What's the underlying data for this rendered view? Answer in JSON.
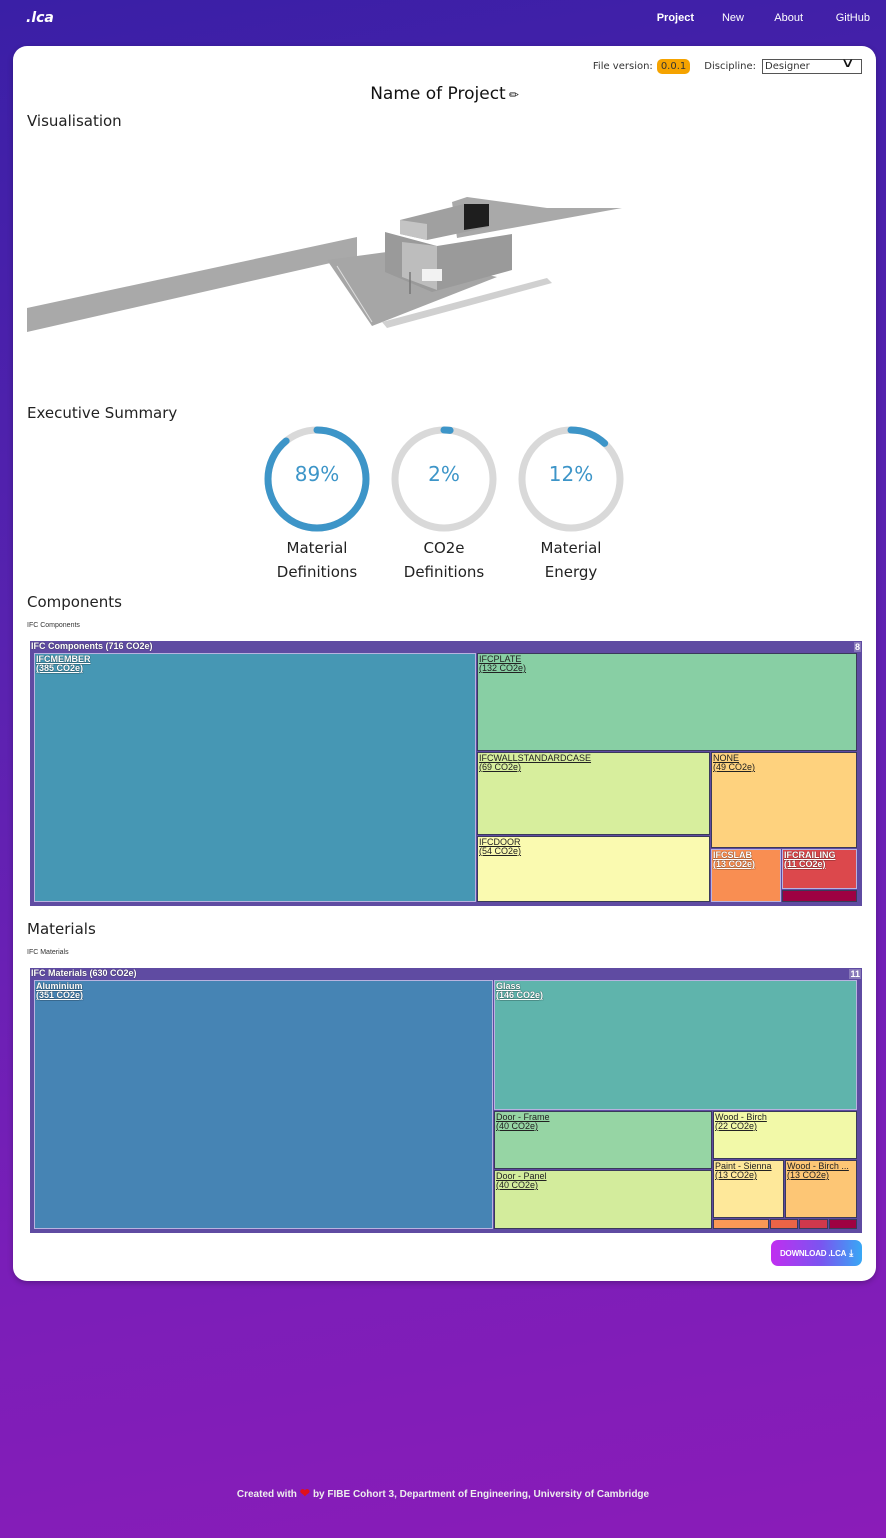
{
  "navbar": {
    "brand": ".lca",
    "links": [
      {
        "label": "Project",
        "active": true
      },
      {
        "label": "New",
        "active": false
      },
      {
        "label": "About",
        "active": false
      },
      {
        "label": "GitHub",
        "active": false
      }
    ]
  },
  "meta": {
    "file_version_label": "File version:",
    "file_version": "0.0.1",
    "discipline_label": "Discipline:",
    "discipline_value": "Designer",
    "chevron_icon": "chevron-down-icon"
  },
  "project": {
    "title": "Name of Project",
    "edit_icon": "pencil-icon"
  },
  "sections": {
    "visualisation": "Visualisation",
    "executive_summary": "Executive Summary",
    "components": "Components",
    "components_sub": "IFC Components",
    "materials": "Materials",
    "materials_sub": "IFC Materials"
  },
  "gauges": [
    {
      "value": 89,
      "text": "89%",
      "label_line1": "Material",
      "label_line2": "Definitions"
    },
    {
      "value": 2,
      "text": "2%",
      "label_line1": "CO2e",
      "label_line2": "Definitions"
    },
    {
      "value": 12,
      "text": "12%",
      "label_line1": "Material",
      "label_line2": "Energy"
    }
  ],
  "colors": {
    "gauge_fill": "#3d95c8",
    "gauge_track": "#d9d9d9",
    "version_badge": "#f5a300",
    "treemap_frame": "#5f4ba2"
  },
  "chart_data": [
    {
      "type": "treemap",
      "title": "IFC Components (716 CO2e)",
      "child_count": "8",
      "total": 716,
      "unit": "CO2e",
      "items": [
        {
          "name": "IFCMEMBER",
          "value": 385,
          "label": "(385 CO2e)",
          "color": "#4697b4"
        },
        {
          "name": "IFCPLATE",
          "value": 132,
          "label": "(132 CO2e)",
          "color": "#88cfa4"
        },
        {
          "name": "IFCWALLSTANDARDCASE",
          "value": 69,
          "label": "(69 CO2e)",
          "color": "#d7ee9d"
        },
        {
          "name": "IFCDOOR",
          "value": 54,
          "label": "(54 CO2e)",
          "color": "#fafab0"
        },
        {
          "name": "NONE",
          "value": 49,
          "label": "(49 CO2e)",
          "color": "#fed27e"
        },
        {
          "name": "IFCSLAB",
          "value": 13,
          "label": "(13 CO2e)",
          "color": "#f98e52"
        },
        {
          "name": "IFCRAILING",
          "value": 11,
          "label": "(11 CO2e)",
          "color": "#dc484c"
        },
        {
          "name": "",
          "value": 3,
          "label": "",
          "color": "#9e0142"
        }
      ]
    },
    {
      "type": "treemap",
      "title": "IFC Materials (630 CO2e)",
      "child_count": "11",
      "total": 630,
      "unit": "CO2e",
      "items": [
        {
          "name": "Aluminium",
          "value": 351,
          "label": "(351 CO2e)",
          "color": "#4684b4"
        },
        {
          "name": "Glass",
          "value": 146,
          "label": "(146 CO2e)",
          "color": "#5fb4ac"
        },
        {
          "name": "Door - Frame",
          "value": 40,
          "label": "(40 CO2e)",
          "color": "#96d5a4"
        },
        {
          "name": "Door - Panel",
          "value": 40,
          "label": "(40 CO2e)",
          "color": "#d3ec9c"
        },
        {
          "name": "Wood - Birch",
          "value": 22,
          "label": "(22 CO2e)",
          "color": "#f2f9a8"
        },
        {
          "name": "Paint - Sienna",
          "value": 13,
          "label": "(13 CO2e)",
          "color": "#fee89a"
        },
        {
          "name": "Wood - Birch ...",
          "value": 13,
          "label": "(13 CO2e)",
          "color": "#fdc675"
        },
        {
          "name": "",
          "value": 2,
          "label": "",
          "color": "#fa9856"
        },
        {
          "name": "",
          "value": 1,
          "label": "",
          "color": "#ec6446"
        },
        {
          "name": "",
          "value": 1,
          "label": "",
          "color": "#d0384c"
        },
        {
          "name": "",
          "value": 1,
          "label": "",
          "color": "#9e0142"
        }
      ]
    }
  ],
  "download": {
    "label": "DOWNLOAD .LCA",
    "icon": "download-icon"
  },
  "footer": {
    "prefix": "Created with",
    "suffix": "by FIBE Cohort 3, Department of Engineering, University of Cambridge"
  }
}
